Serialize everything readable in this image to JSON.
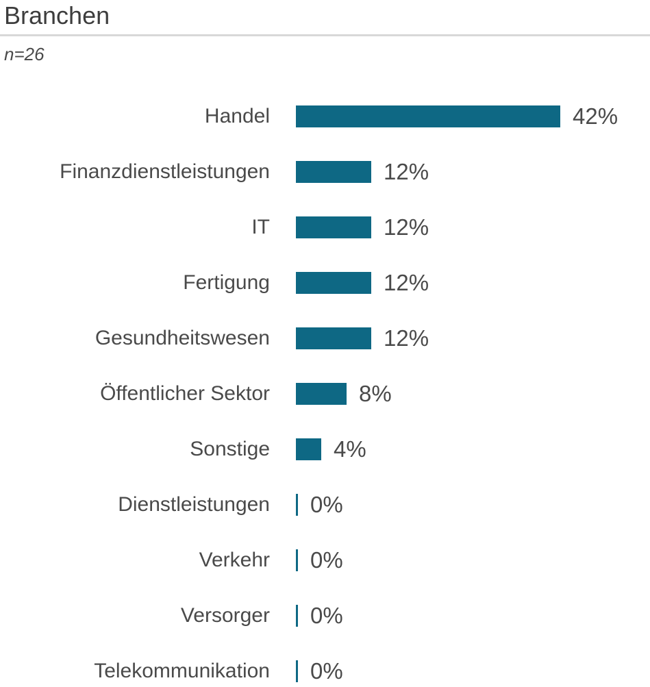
{
  "title": "Branchen",
  "subtitle": "n=26",
  "colors": {
    "bar": "#0e6884",
    "text": "#4a4a4a",
    "title_text": "#3d3d3d",
    "divider": "#d8d8d8"
  },
  "chart_data": {
    "type": "bar",
    "orientation": "horizontal",
    "title": "Branchen",
    "subtitle": "n=26",
    "sample_size": 26,
    "unit": "%",
    "xlim": [
      0,
      42
    ],
    "legend": "none",
    "grid": false,
    "categories": [
      "Handel",
      "Finanzdienstleistungen",
      "IT",
      "Fertigung",
      "Gesundheitswesen",
      "Öffentlicher Sektor",
      "Sonstige",
      "Dienstleistungen",
      "Verkehr",
      "Versorger",
      "Telekommunikation"
    ],
    "values": [
      42,
      12,
      12,
      12,
      12,
      8,
      4,
      0,
      0,
      0,
      0
    ],
    "value_labels": [
      "42%",
      "12%",
      "12%",
      "12%",
      "12%",
      "8%",
      "4%",
      "0%",
      "0%",
      "0%",
      "0%"
    ]
  }
}
